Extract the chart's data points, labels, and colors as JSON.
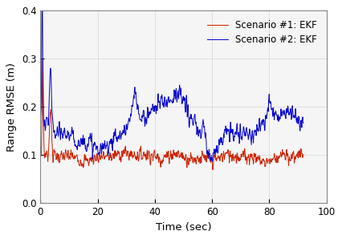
{
  "title": "",
  "xlabel": "Time (sec)",
  "ylabel": "Range RMSE (m)",
  "xlim": [
    0,
    100
  ],
  "ylim": [
    0,
    0.4
  ],
  "xticks": [
    0,
    20,
    40,
    60,
    80,
    100
  ],
  "yticks": [
    0,
    0.1,
    0.2,
    0.3,
    0.4
  ],
  "legend": [
    "Scenario #1: EKF",
    "Scenario #2: EKF"
  ],
  "line1_color": "#cc2200",
  "line2_color": "#0000cc",
  "line_width": 0.7,
  "seed": 7,
  "n_points": 920,
  "background_color": "#ffffff",
  "plot_bg_color": "#f5f5f5",
  "legend_fontsize": 8.5,
  "axis_fontsize": 9.5,
  "tick_fontsize": 8.5
}
